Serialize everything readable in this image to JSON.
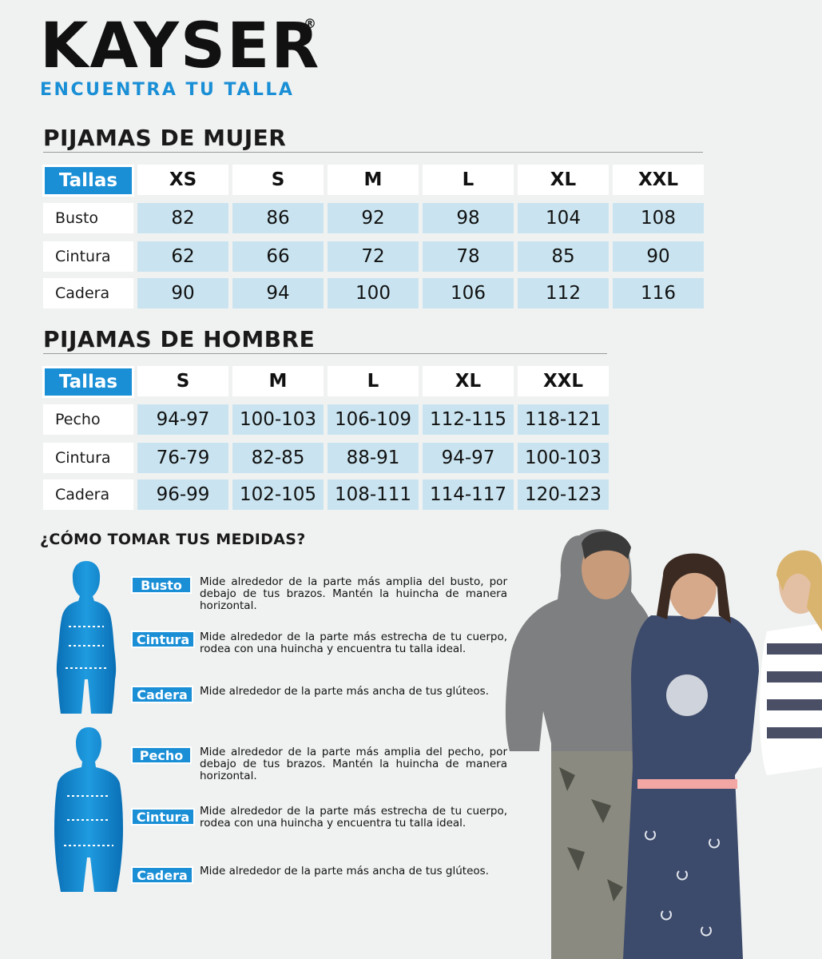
{
  "brand": {
    "name": "KAYSER",
    "registered": "®",
    "tagline": "ENCUENTRA TU TALLA"
  },
  "women": {
    "title": "PIJAMAS DE MUJER",
    "header_label": "Tallas",
    "sizes": [
      "XS",
      "S",
      "M",
      "L",
      "XL",
      "XXL"
    ],
    "rows": [
      {
        "label": "Busto",
        "values": [
          "82",
          "86",
          "92",
          "98",
          "104",
          "108"
        ]
      },
      {
        "label": "Cintura",
        "values": [
          "62",
          "66",
          "72",
          "78",
          "85",
          "90"
        ]
      },
      {
        "label": "Cadera",
        "values": [
          "90",
          "94",
          "100",
          "106",
          "112",
          "116"
        ]
      }
    ]
  },
  "men": {
    "title": "PIJAMAS DE HOMBRE",
    "header_label": "Tallas",
    "sizes": [
      "S",
      "M",
      "L",
      "XL",
      "XXL"
    ],
    "rows": [
      {
        "label": "Pecho",
        "values": [
          "94-97",
          "100-103",
          "106-109",
          "112-115",
          "118-121"
        ]
      },
      {
        "label": "Cintura",
        "values": [
          "76-79",
          "82-85",
          "88-91",
          "94-97",
          "100-103"
        ]
      },
      {
        "label": "Cadera",
        "values": [
          "96-99",
          "102-105",
          "108-111",
          "114-117",
          "120-123"
        ]
      }
    ]
  },
  "howto": {
    "title": "¿CÓMO TOMAR TUS MEDIDAS?",
    "women_items": [
      {
        "tag": "Busto",
        "text": "Mide alrededor de la parte más amplia del busto, por debajo de tus brazos. Mantén la huincha de manera horizontal."
      },
      {
        "tag": "Cintura",
        "text": "Mide alrededor de la parte más estrecha de tu cuerpo, rodea con una huincha y encuentra tu talla ideal."
      },
      {
        "tag": "Cadera",
        "text": "Mide alrededor de la parte más ancha de tus glúteos."
      }
    ],
    "men_items": [
      {
        "tag": "Pecho",
        "text": "Mide alrededor de la parte más amplia del pecho, por debajo de tus brazos. Mantén la huincha de manera horizontal."
      },
      {
        "tag": "Cintura",
        "text": "Mide alrededor de la parte más estrecha de tu cuerpo, rodea con una huincha y encuentra tu talla ideal."
      },
      {
        "tag": "Cadera",
        "text": "Mide alrededor de la parte más ancha de tus glúteos."
      }
    ]
  },
  "colors": {
    "accent": "#1a8fd6",
    "value_bg": "#c9e4f0",
    "page_bg": "#f0f2f1"
  }
}
